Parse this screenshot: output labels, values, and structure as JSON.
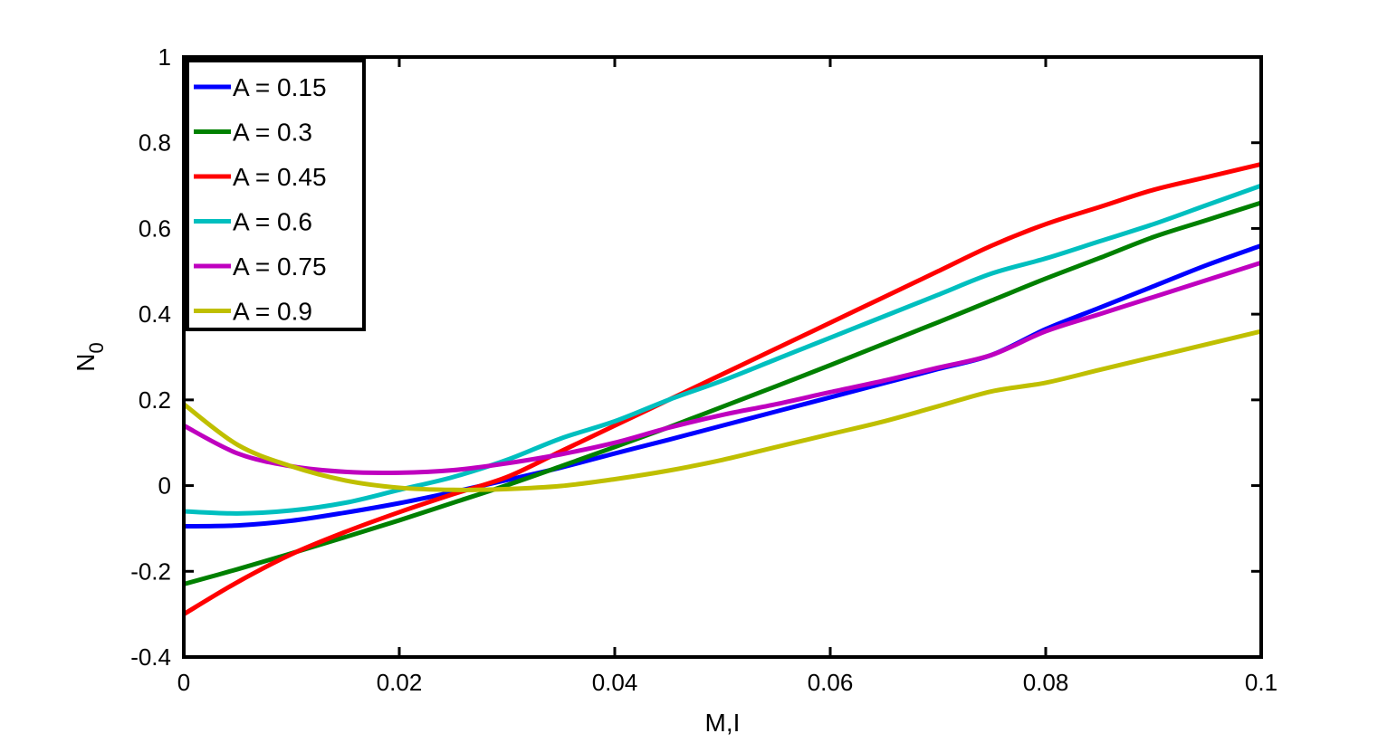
{
  "chart_data": {
    "type": "line",
    "title": "",
    "xlabel": "M,I",
    "ylabel": "N",
    "ylabel_subscript": "0",
    "xlim": [
      0,
      0.1
    ],
    "ylim": [
      -0.4,
      1
    ],
    "xticks": [
      0,
      0.02,
      0.04,
      0.06,
      0.08,
      0.1
    ],
    "xtick_labels": [
      "0",
      "0.02",
      "0.04",
      "0.06",
      "0.08",
      "0.1"
    ],
    "yticks": [
      -0.4,
      -0.2,
      0,
      0.2,
      0.4,
      0.6,
      0.8,
      1
    ],
    "ytick_labels": [
      "-0.4",
      "-0.2",
      "0",
      "0.2",
      "0.4",
      "0.6",
      "0.8",
      "1"
    ],
    "grid": false,
    "legend_position": "top-left",
    "x": [
      0,
      0.005,
      0.01,
      0.015,
      0.02,
      0.025,
      0.03,
      0.035,
      0.04,
      0.045,
      0.05,
      0.055,
      0.06,
      0.065,
      0.07,
      0.075,
      0.08,
      0.085,
      0.09,
      0.095,
      0.1
    ],
    "series": [
      {
        "name": "A = 0.15",
        "color": "#0000ff",
        "values": [
          -0.095,
          -0.093,
          -0.082,
          -0.063,
          -0.041,
          -0.015,
          0.013,
          0.042,
          0.075,
          0.107,
          0.14,
          0.173,
          0.206,
          0.239,
          0.272,
          0.305,
          0.365,
          0.415,
          0.465,
          0.515,
          0.56
        ]
      },
      {
        "name": "A = 0.3",
        "color": "#008000",
        "values": [
          -0.23,
          -0.195,
          -0.158,
          -0.12,
          -0.081,
          -0.04,
          0.001,
          0.045,
          0.09,
          0.136,
          0.184,
          0.232,
          0.281,
          0.331,
          0.381,
          0.432,
          0.483,
          0.531,
          0.58,
          0.62,
          0.66
        ]
      },
      {
        "name": "A = 0.45",
        "color": "#ff0000",
        "values": [
          -0.3,
          -0.225,
          -0.16,
          -0.108,
          -0.062,
          -0.02,
          0.02,
          0.08,
          0.14,
          0.2,
          0.26,
          0.32,
          0.38,
          0.44,
          0.5,
          0.56,
          0.61,
          0.65,
          0.69,
          0.72,
          0.75
        ]
      },
      {
        "name": "A = 0.6",
        "color": "#00bfbf",
        "values": [
          -0.06,
          -0.065,
          -0.058,
          -0.04,
          -0.01,
          0.02,
          0.06,
          0.11,
          0.15,
          0.2,
          0.245,
          0.295,
          0.345,
          0.395,
          0.445,
          0.495,
          0.53,
          0.57,
          0.61,
          0.655,
          0.7
        ]
      },
      {
        "name": "A = 0.75",
        "color": "#bf00bf",
        "values": [
          0.14,
          0.075,
          0.045,
          0.032,
          0.03,
          0.036,
          0.052,
          0.073,
          0.1,
          0.135,
          0.165,
          0.19,
          0.218,
          0.245,
          0.275,
          0.305,
          0.36,
          0.4,
          0.44,
          0.48,
          0.52
        ]
      },
      {
        "name": "A = 0.9",
        "color": "#bfbf00",
        "values": [
          0.19,
          0.095,
          0.045,
          0.012,
          -0.005,
          -0.01,
          -0.008,
          -0.001,
          0.015,
          0.035,
          0.06,
          0.09,
          0.12,
          0.15,
          0.185,
          0.22,
          0.24,
          0.27,
          0.3,
          0.33,
          0.36
        ]
      }
    ]
  }
}
